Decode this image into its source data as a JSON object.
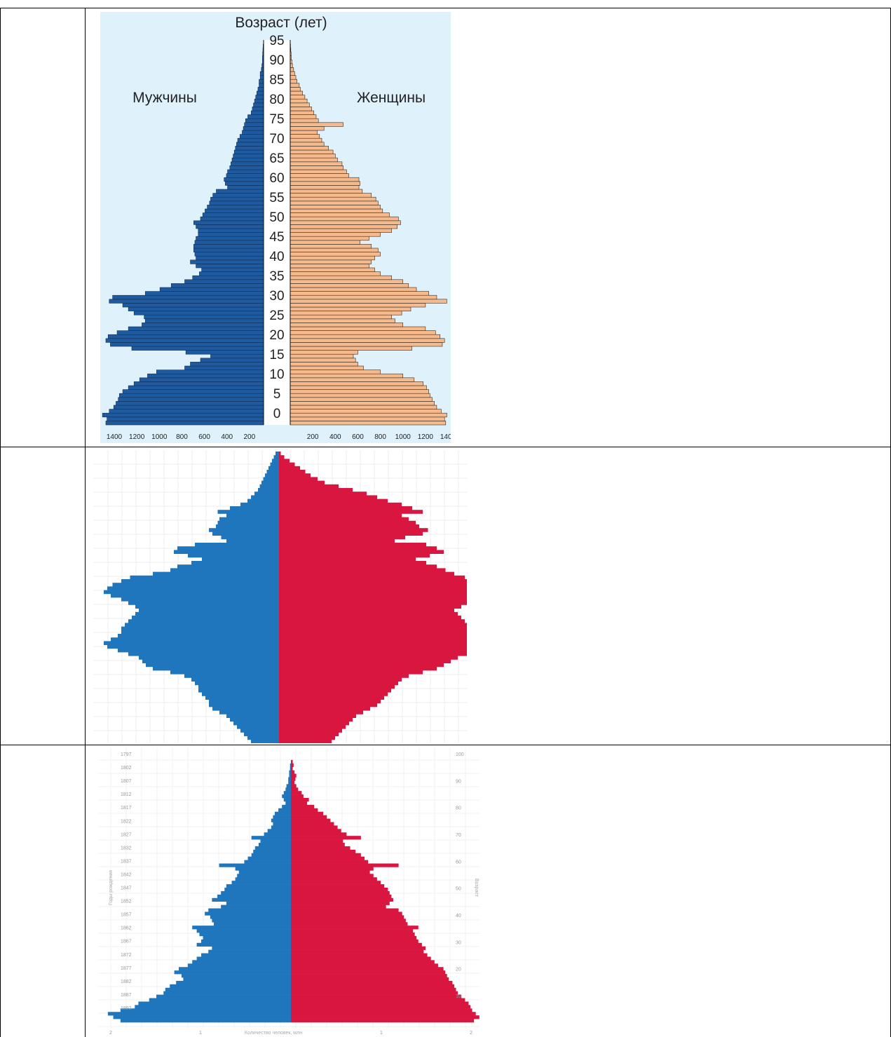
{
  "colors": {
    "chart1_bg": "#dff1fb",
    "chart1_male": "#1f5a9e",
    "chart1_female": "#f4b98c",
    "chart2_male": "#1f76bd",
    "chart2_female": "#d9163f",
    "chart3_male": "#1f76bd",
    "chart3_female": "#d9163f"
  },
  "chart_data": [
    {
      "type": "bar",
      "title": "Возраст (лет)",
      "orientation": "horizontal-pyramid",
      "series": [
        {
          "name": "Мужчины",
          "side": "left"
        },
        {
          "name": "Женщины",
          "side": "right"
        }
      ],
      "age_tick_labels": [
        "95",
        "90",
        "85",
        "80",
        "75",
        "70",
        "65",
        "60",
        "55",
        "50",
        "45",
        "40",
        "35",
        "30",
        "25",
        "20",
        "15",
        "10",
        "5",
        "0"
      ],
      "x_tick_labels_left": [
        "1400",
        "1200",
        "1000",
        "800",
        "600",
        "400",
        "200"
      ],
      "x_tick_labels_right": [
        "200",
        "400",
        "600",
        "800",
        "1000",
        "1200",
        "1400"
      ],
      "xlim": [
        0,
        1400
      ],
      "ages": [
        0,
        1,
        2,
        3,
        4,
        5,
        6,
        7,
        8,
        9,
        10,
        11,
        12,
        13,
        14,
        15,
        16,
        17,
        18,
        19,
        20,
        21,
        22,
        23,
        24,
        25,
        26,
        27,
        28,
        29,
        30,
        31,
        32,
        33,
        34,
        35,
        36,
        37,
        38,
        39,
        40,
        41,
        42,
        43,
        44,
        45,
        46,
        47,
        48,
        49,
        50,
        51,
        52,
        53,
        54,
        55,
        56,
        57,
        58,
        59,
        60,
        61,
        62,
        63,
        64,
        65,
        66,
        67,
        68,
        69,
        70,
        71,
        72,
        73,
        74,
        75,
        76,
        77,
        78,
        79,
        80,
        81,
        82,
        83,
        84,
        85,
        86,
        87,
        88,
        89,
        90,
        91,
        92,
        93,
        94,
        95,
        96
      ],
      "male": [
        1400,
        1390,
        1430,
        1370,
        1330,
        1310,
        1290,
        1280,
        1250,
        1200,
        1150,
        1100,
        1030,
        950,
        700,
        650,
        560,
        470,
        690,
        1170,
        1360,
        1400,
        1380,
        1300,
        1200,
        1080,
        1050,
        1060,
        1150,
        1200,
        1250,
        1370,
        1340,
        1050,
        920,
        820,
        700,
        630,
        570,
        550,
        600,
        650,
        600,
        610,
        620,
        620,
        610,
        600,
        580,
        580,
        600,
        620,
        560,
        540,
        520,
        500,
        480,
        470,
        450,
        420,
        320,
        340,
        350,
        330,
        320,
        300,
        290,
        280,
        270,
        260,
        250,
        240,
        230,
        210,
        190,
        180,
        170,
        160,
        140,
        110,
        100,
        90,
        80,
        70,
        60,
        50,
        40,
        40,
        30,
        30,
        20,
        15,
        10,
        10,
        8,
        6,
        4
      ],
      "female": [
        1380,
        1370,
        1390,
        1340,
        1300,
        1280,
        1260,
        1240,
        1230,
        1210,
        1180,
        1100,
        1000,
        800,
        650,
        600,
        580,
        560,
        600,
        1080,
        1350,
        1370,
        1330,
        1290,
        1200,
        1000,
        930,
        900,
        990,
        1070,
        1200,
        1390,
        1300,
        1230,
        1120,
        1050,
        1000,
        900,
        800,
        750,
        700,
        720,
        750,
        800,
        780,
        720,
        620,
        700,
        800,
        900,
        950,
        980,
        960,
        880,
        820,
        800,
        780,
        760,
        720,
        640,
        610,
        620,
        610,
        520,
        500,
        470,
        460,
        420,
        400,
        380,
        340,
        300,
        280,
        260,
        240,
        300,
        470,
        250,
        230,
        210,
        190,
        170,
        150,
        130,
        110,
        90,
        80,
        60,
        50,
        40,
        30,
        20,
        15,
        10,
        8,
        5,
        3
      ]
    },
    {
      "type": "bar",
      "orientation": "horizontal-pyramid",
      "series": [
        {
          "side": "left"
        },
        {
          "side": "right"
        }
      ],
      "rows_top_to_bottom_male": [
        0.02,
        0.03,
        0.04,
        0.05,
        0.06,
        0.07,
        0.08,
        0.09,
        0.1,
        0.11,
        0.12,
        0.14,
        0.16,
        0.18,
        0.22,
        0.28,
        0.35,
        0.3,
        0.34,
        0.35,
        0.36,
        0.4,
        0.38,
        0.33,
        0.3,
        0.48,
        0.58,
        0.6,
        0.52,
        0.44,
        0.5,
        0.58,
        0.62,
        0.72,
        0.85,
        0.9,
        0.95,
        0.98,
        1.0,
        0.96,
        0.9,
        0.86,
        0.82,
        0.8,
        0.82,
        0.84,
        0.86,
        0.88,
        0.9,
        0.9,
        0.92,
        0.96,
        1.0,
        0.98,
        0.92,
        0.86,
        0.8,
        0.78,
        0.76,
        0.72,
        0.62,
        0.54,
        0.5,
        0.48,
        0.46,
        0.46,
        0.44,
        0.42,
        0.4,
        0.4,
        0.38,
        0.34,
        0.3,
        0.28,
        0.26,
        0.24,
        0.22,
        0.2,
        0.18,
        0.16
      ],
      "rows_top_to_bottom_female": [
        0.01,
        0.03,
        0.06,
        0.09,
        0.12,
        0.15,
        0.18,
        0.22,
        0.26,
        0.34,
        0.42,
        0.5,
        0.56,
        0.62,
        0.7,
        0.76,
        0.82,
        0.7,
        0.74,
        0.78,
        0.8,
        0.85,
        0.82,
        0.72,
        0.66,
        0.84,
        0.9,
        0.94,
        0.86,
        0.78,
        0.84,
        0.9,
        0.95,
        1.0,
        1.06,
        1.12,
        1.16,
        1.18,
        1.2,
        1.16,
        1.12,
        1.08,
        1.04,
        1.0,
        1.02,
        1.04,
        1.06,
        1.08,
        1.1,
        1.12,
        1.16,
        1.2,
        1.22,
        1.2,
        1.14,
        1.08,
        1.02,
        0.98,
        0.94,
        0.9,
        0.82,
        0.74,
        0.7,
        0.68,
        0.66,
        0.64,
        0.62,
        0.6,
        0.58,
        0.56,
        0.52,
        0.48,
        0.44,
        0.42,
        0.4,
        0.38,
        0.36,
        0.34,
        0.32,
        0.3
      ]
    },
    {
      "type": "bar",
      "orientation": "horizontal-pyramid",
      "left_axis_labels": [
        "1797",
        "1802",
        "1807",
        "1812",
        "1817",
        "1822",
        "1827",
        "1832",
        "1837",
        "1842",
        "1847",
        "1852",
        "1857",
        "1862",
        "1867",
        "1872",
        "1877",
        "1882",
        "1887",
        "1892"
      ],
      "right_axis_labels": [
        "100",
        "90",
        "80",
        "70",
        "60",
        "50",
        "40",
        "30",
        "20",
        "10"
      ],
      "x_tick_labels": [
        "2",
        "1",
        "1",
        "2"
      ],
      "xlabel": "Количество человек, млн",
      "ylabel_left": "Годы рождения",
      "ylabel_right": "Возраст",
      "rows_top_to_bottom_male": [
        0.0,
        0.0,
        0.0,
        0.01,
        0.01,
        0.02,
        0.02,
        0.03,
        0.03,
        0.05,
        0.06,
        0.08,
        0.1,
        0.08,
        0.06,
        0.1,
        0.14,
        0.18,
        0.2,
        0.22,
        0.2,
        0.22,
        0.26,
        0.3,
        0.44,
        0.34,
        0.36,
        0.4,
        0.42,
        0.44,
        0.48,
        0.52,
        0.8,
        0.62,
        0.58,
        0.6,
        0.62,
        0.66,
        0.72,
        0.74,
        0.78,
        0.82,
        0.88,
        0.72,
        0.78,
        0.92,
        0.96,
        0.9,
        0.88,
        0.86,
        1.1,
        1.05,
        1.02,
        0.98,
        1.0,
        1.05,
        0.88,
        0.92,
        1.0,
        1.05,
        1.1,
        1.15,
        1.25,
        1.3,
        1.22,
        1.2,
        1.28,
        1.35,
        1.4,
        1.42,
        1.5,
        1.58,
        1.7,
        1.74,
        1.9,
        2.04,
        1.98,
        1.9
      ],
      "rows_top_to_bottom_female": [
        0.0,
        0.0,
        0.02,
        0.03,
        0.02,
        0.04,
        0.06,
        0.05,
        0.04,
        0.06,
        0.08,
        0.12,
        0.14,
        0.2,
        0.18,
        0.26,
        0.3,
        0.36,
        0.4,
        0.44,
        0.48,
        0.52,
        0.56,
        0.62,
        0.78,
        0.58,
        0.6,
        0.66,
        0.72,
        0.78,
        0.82,
        0.86,
        1.2,
        0.92,
        0.88,
        0.92,
        0.96,
        1.0,
        1.04,
        1.08,
        1.1,
        1.12,
        1.14,
        1.1,
        1.06,
        1.2,
        1.24,
        1.26,
        1.28,
        1.3,
        1.42,
        1.36,
        1.38,
        1.4,
        1.42,
        1.46,
        1.5,
        1.48,
        1.52,
        1.56,
        1.6,
        1.64,
        1.7,
        1.72,
        1.74,
        1.76,
        1.8,
        1.82,
        1.84,
        1.86,
        1.9,
        1.94,
        1.98,
        2.0,
        2.02,
        2.06,
        2.1,
        2.04
      ]
    }
  ]
}
